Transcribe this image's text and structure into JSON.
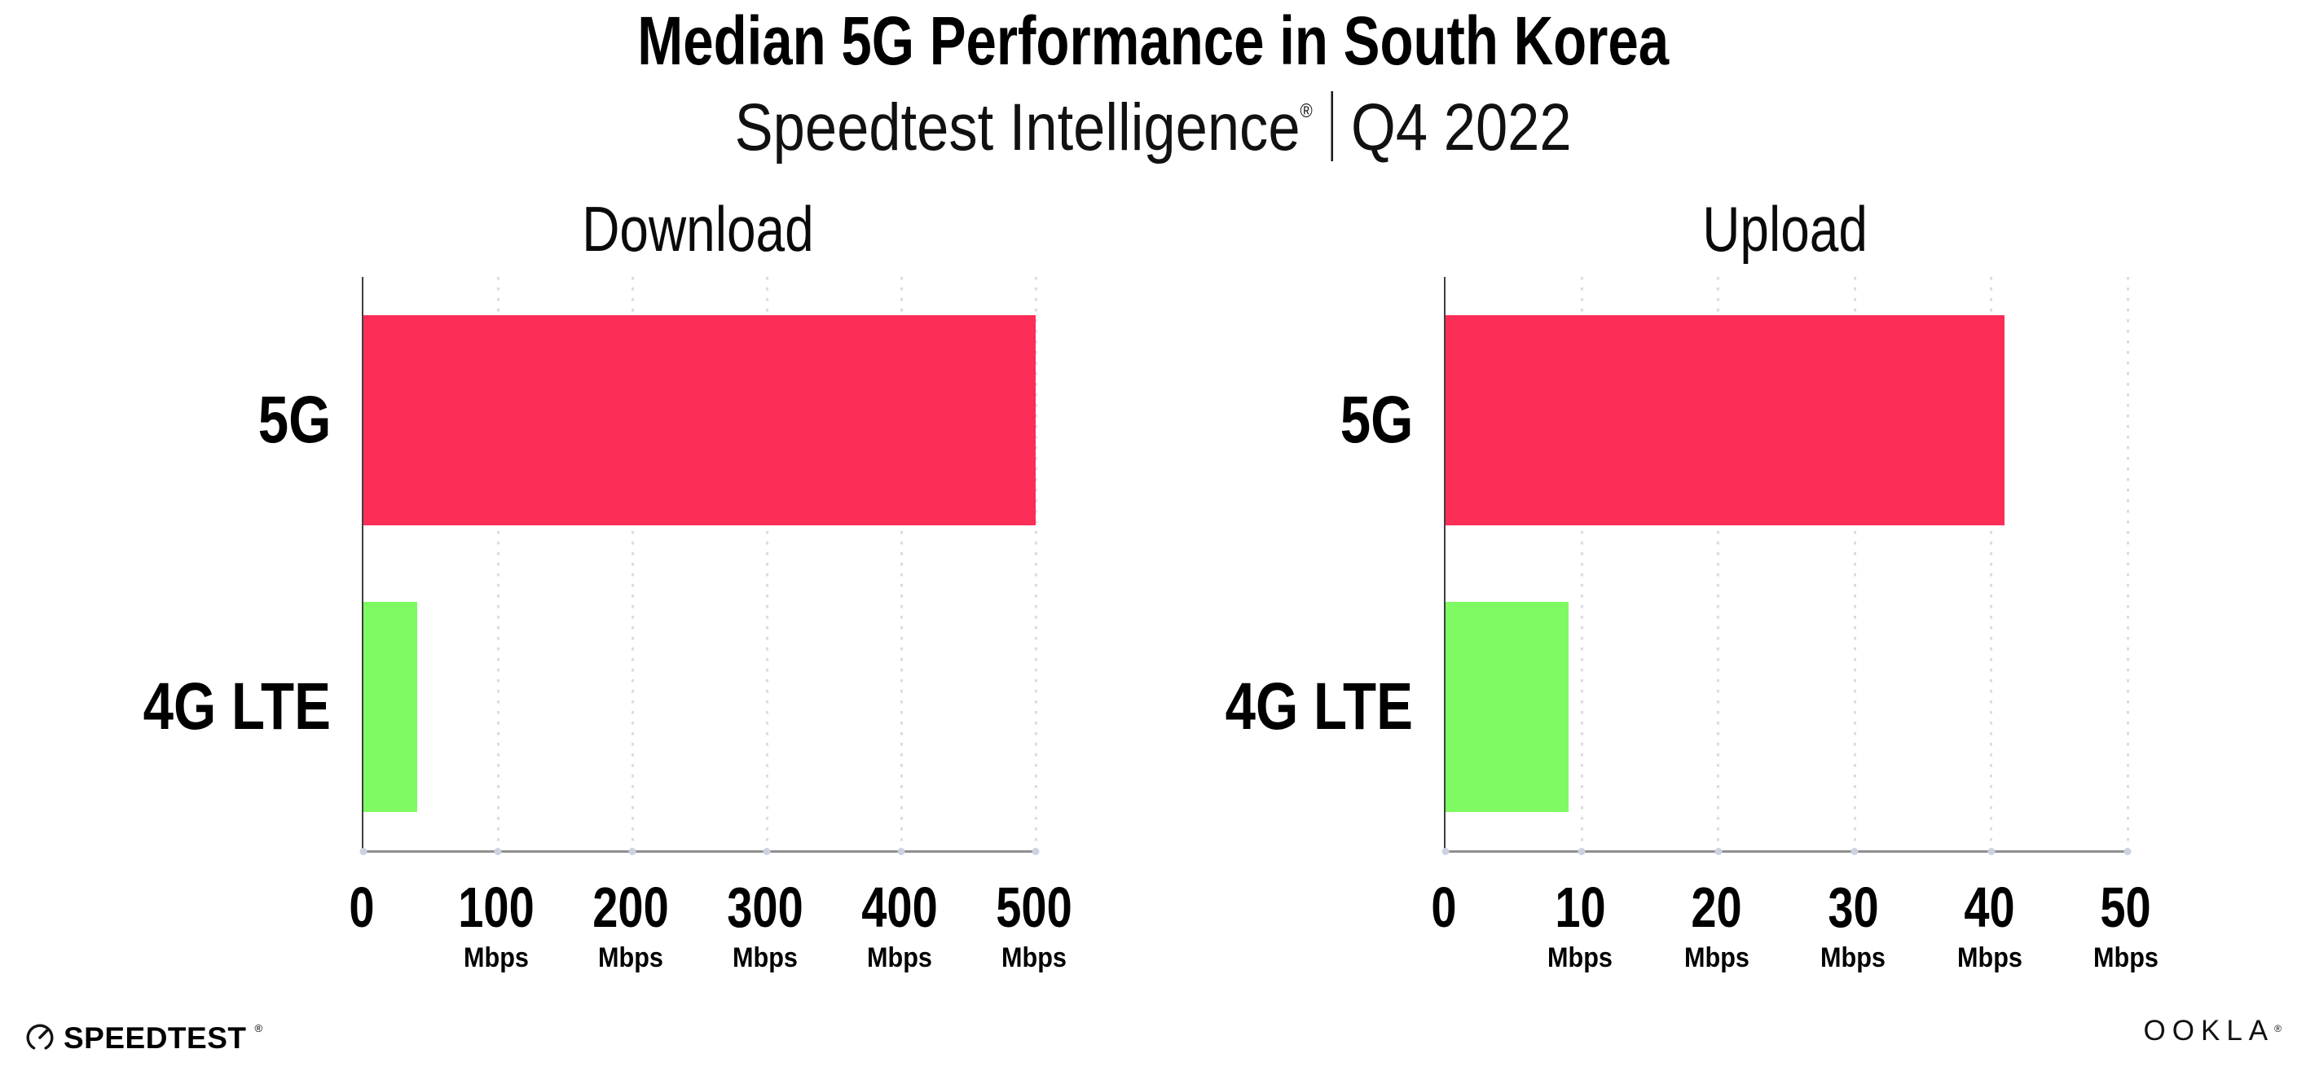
{
  "header": {
    "title": "Median 5G Performance in South Korea",
    "subtitle": {
      "brand": "Speedtest Intelligence",
      "reg": "®",
      "separator": "|",
      "period": "Q4 2022"
    }
  },
  "chart_data": [
    {
      "type": "bar",
      "orientation": "horizontal",
      "title": "Download",
      "categories": [
        "5G",
        "4G LTE"
      ],
      "values": [
        500,
        40
      ],
      "unit": "Mbps",
      "xlim": [
        0,
        500
      ],
      "xticks": [
        0,
        100,
        200,
        300,
        400,
        500
      ],
      "tick_labels": [
        {
          "value": "0",
          "unit": ""
        },
        {
          "value": "100",
          "unit": "Mbps"
        },
        {
          "value": "200",
          "unit": "Mbps"
        },
        {
          "value": "300",
          "unit": "Mbps"
        },
        {
          "value": "400",
          "unit": "Mbps"
        },
        {
          "value": "500",
          "unit": "Mbps"
        }
      ],
      "bar_colors": [
        "#FC2D56",
        "#7EFA62"
      ],
      "grid": "dotted vertical gridlines",
      "legend": "none"
    },
    {
      "type": "bar",
      "orientation": "horizontal",
      "title": "Upload",
      "categories": [
        "5G",
        "4G LTE"
      ],
      "values": [
        41,
        9
      ],
      "unit": "Mbps",
      "xlim": [
        0,
        50
      ],
      "xticks": [
        0,
        10,
        20,
        30,
        40,
        50
      ],
      "tick_labels": [
        {
          "value": "0",
          "unit": ""
        },
        {
          "value": "10",
          "unit": "Mbps"
        },
        {
          "value": "20",
          "unit": "Mbps"
        },
        {
          "value": "30",
          "unit": "Mbps"
        },
        {
          "value": "40",
          "unit": "Mbps"
        },
        {
          "value": "50",
          "unit": "Mbps"
        }
      ],
      "bar_colors": [
        "#FC2D56",
        "#7EFA62"
      ],
      "grid": "dotted vertical gridlines",
      "legend": "none"
    }
  ],
  "footer": {
    "speedtest_logo": "SPEEDTEST",
    "speedtest_reg": "®",
    "ookla_logo": "OOKLA",
    "ookla_reg": "®"
  },
  "colors": {
    "bar_5g": "#FC2D56",
    "bar_4g_lte": "#7EFA62",
    "gridline": "#D9DBE6",
    "x_axis": "#8F8F8F",
    "y_axis": "#3F3F3F",
    "background": "#FFFFFF",
    "text": "#000000"
  }
}
